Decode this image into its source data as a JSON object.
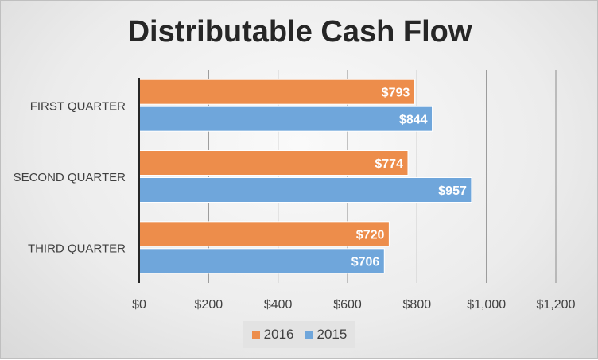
{
  "chart_data": {
    "type": "bar",
    "orientation": "horizontal",
    "title": "Distributable Cash Flow",
    "categories": [
      "FIRST QUARTER",
      "SECOND QUARTER",
      "THIRD QUARTER"
    ],
    "series": [
      {
        "name": "2016",
        "values": [
          793,
          774,
          720
        ],
        "labels": [
          "$793",
          "$774",
          "$720"
        ],
        "color": "#ED8D4B"
      },
      {
        "name": "2015",
        "values": [
          844,
          957,
          706
        ],
        "labels": [
          "$844",
          "$957",
          "$706"
        ],
        "color": "#6FA6DB"
      }
    ],
    "xlim": [
      0,
      1200
    ],
    "xticks": [
      0,
      200,
      400,
      600,
      800,
      1000,
      1200
    ],
    "xtick_labels": [
      "$0",
      "$200",
      "$400",
      "$600",
      "$800",
      "$1,000",
      "$1,200"
    ],
    "grid": "vertical",
    "legend": "bottom",
    "xlabel": "",
    "ylabel": ""
  }
}
